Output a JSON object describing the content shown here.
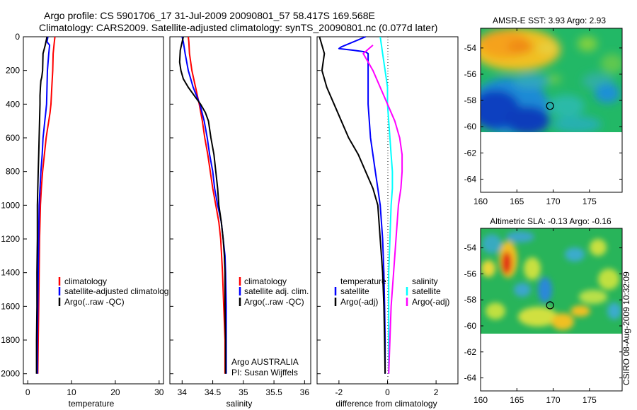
{
  "header": {
    "line1": "Argo profile: CS 5901706_17 31-Jul-2009 20090801_57 58.417S 169.568E",
    "line2": "Climatology: CARS2009. Satellite-adjusted climatology: synTS_20090801.nc (0.077d later)"
  },
  "colors": {
    "climatology": "#ff0000",
    "satellite": "#0000ff",
    "argo": "#000000",
    "sal_satellite": "#00ffff",
    "sal_argo": "#ff00ff"
  },
  "chart_data": [
    {
      "type": "line",
      "name": "temperature-panel",
      "xlabel": "temperature",
      "ylabel": "",
      "xlim": [
        -1,
        31
      ],
      "ylim": [
        2060,
        0
      ],
      "xticks": [
        0,
        10,
        20,
        30
      ],
      "yticks": [
        0,
        200,
        400,
        600,
        800,
        1000,
        1200,
        1400,
        1600,
        1800,
        2000
      ],
      "legend": [
        "climatology",
        "satellite-adjusted climatolog",
        "Argo(..raw -QC)"
      ],
      "series": [
        {
          "name": "climatology",
          "color": "#ff0000",
          "points": [
            [
              6.2,
              0
            ],
            [
              6.0,
              50
            ],
            [
              5.8,
              100
            ],
            [
              5.7,
              200
            ],
            [
              5.5,
              300
            ],
            [
              5.3,
              400
            ],
            [
              5.1,
              450
            ],
            [
              4.8,
              500
            ],
            [
              4.5,
              550
            ],
            [
              4.2,
              600
            ],
            [
              3.8,
              700
            ],
            [
              3.4,
              800
            ],
            [
              3.1,
              900
            ],
            [
              2.9,
              1000
            ],
            [
              2.7,
              1200
            ],
            [
              2.6,
              1400
            ],
            [
              2.5,
              1600
            ],
            [
              2.4,
              1800
            ],
            [
              2.3,
              2000
            ]
          ]
        },
        {
          "name": "satellite-adjusted climatolog",
          "color": "#0000ff",
          "points": [
            [
              4.6,
              0
            ],
            [
              4.4,
              30
            ],
            [
              5.0,
              50
            ],
            [
              4.8,
              100
            ],
            [
              4.5,
              200
            ],
            [
              4.4,
              300
            ],
            [
              4.3,
              400
            ],
            [
              4.1,
              450
            ],
            [
              3.9,
              500
            ],
            [
              3.7,
              550
            ],
            [
              3.5,
              600
            ],
            [
              3.3,
              700
            ],
            [
              3.0,
              800
            ],
            [
              2.8,
              900
            ],
            [
              2.6,
              1000
            ],
            [
              2.5,
              1200
            ],
            [
              2.4,
              1400
            ],
            [
              2.3,
              1600
            ],
            [
              2.2,
              1800
            ],
            [
              2.2,
              2000
            ]
          ]
        },
        {
          "name": "Argo(..raw -QC)",
          "color": "#000000",
          "points": [
            [
              4.4,
              0
            ],
            [
              4.0,
              50
            ],
            [
              3.5,
              100
            ],
            [
              3.4,
              200
            ],
            [
              3.2,
              240
            ],
            [
              3.0,
              260
            ],
            [
              2.9,
              300
            ],
            [
              2.8,
              350
            ],
            [
              2.8,
              400
            ],
            [
              2.7,
              500
            ],
            [
              2.6,
              600
            ],
            [
              2.5,
              700
            ],
            [
              2.4,
              800
            ],
            [
              2.3,
              900
            ],
            [
              2.2,
              1000
            ],
            [
              2.2,
              1200
            ],
            [
              2.1,
              1400
            ],
            [
              2.1,
              1600
            ],
            [
              2.0,
              1800
            ],
            [
              2.0,
              2000
            ]
          ]
        }
      ]
    },
    {
      "type": "line",
      "name": "salinity-panel",
      "xlabel": "salinity",
      "xlim": [
        33.8,
        36.1
      ],
      "ylim": [
        2060,
        0
      ],
      "xticks": [
        "34",
        "34.5",
        "35",
        "35.5",
        "36"
      ],
      "legend": [
        "climatology",
        "satellite adj. clim.",
        "Argo(..raw -QC)"
      ],
      "annotations": [
        "Argo AUSTRALIA",
        "PI: Susan Wijffels"
      ],
      "series": [
        {
          "name": "climatology",
          "color": "#ff0000",
          "points": [
            [
              34.1,
              0
            ],
            [
              34.11,
              30
            ],
            [
              34.12,
              100
            ],
            [
              34.16,
              200
            ],
            [
              34.22,
              300
            ],
            [
              34.28,
              400
            ],
            [
              34.33,
              500
            ],
            [
              34.37,
              600
            ],
            [
              34.42,
              700
            ],
            [
              34.46,
              800
            ],
            [
              34.5,
              900
            ],
            [
              34.55,
              1000
            ],
            [
              34.6,
              1100
            ],
            [
              34.63,
              1200
            ],
            [
              34.66,
              1400
            ],
            [
              34.68,
              1600
            ],
            [
              34.7,
              1800
            ],
            [
              34.7,
              2000
            ]
          ]
        },
        {
          "name": "satellite adj. clim.",
          "color": "#0000ff",
          "points": [
            [
              34.0,
              0
            ],
            [
              34.02,
              30
            ],
            [
              34.05,
              100
            ],
            [
              34.1,
              200
            ],
            [
              34.18,
              300
            ],
            [
              34.29,
              400
            ],
            [
              34.36,
              500
            ],
            [
              34.41,
              600
            ],
            [
              34.45,
              700
            ],
            [
              34.5,
              800
            ],
            [
              34.53,
              900
            ],
            [
              34.58,
              1000
            ],
            [
              34.64,
              1100
            ],
            [
              34.67,
              1200
            ],
            [
              34.7,
              1300
            ],
            [
              34.71,
              1400
            ],
            [
              34.72,
              1600
            ],
            [
              34.72,
              1800
            ],
            [
              34.72,
              2000
            ]
          ]
        },
        {
          "name": "Argo(..raw -QC)",
          "color": "#000000",
          "points": [
            [
              34.02,
              0
            ],
            [
              33.97,
              80
            ],
            [
              33.96,
              150
            ],
            [
              33.98,
              200
            ],
            [
              34.02,
              250
            ],
            [
              34.1,
              300
            ],
            [
              34.2,
              350
            ],
            [
              34.3,
              400
            ],
            [
              34.38,
              450
            ],
            [
              34.43,
              500
            ],
            [
              34.47,
              600
            ],
            [
              34.52,
              700
            ],
            [
              34.55,
              800
            ],
            [
              34.58,
              900
            ],
            [
              34.6,
              1000
            ],
            [
              34.64,
              1100
            ],
            [
              34.67,
              1200
            ],
            [
              34.69,
              1300
            ],
            [
              34.7,
              1400
            ],
            [
              34.7,
              1600
            ],
            [
              34.71,
              1800
            ],
            [
              34.71,
              2000
            ]
          ]
        }
      ]
    },
    {
      "type": "line",
      "name": "difference-panel",
      "xlabel": "difference from climatology",
      "xlim": [
        -2.9,
        2.9
      ],
      "ylim": [
        2060,
        0
      ],
      "xticks": [
        "-2",
        "0",
        "2"
      ],
      "legend": [
        "temperature",
        "satellite",
        "Argo(-adj)",
        "salinity",
        "satellite",
        "Argo(-adj)"
      ],
      "series": [
        {
          "name": "temperature satellite",
          "color": "#0000ff",
          "points": [
            [
              -0.9,
              0
            ],
            [
              -1.9,
              60
            ],
            [
              -2.0,
              70
            ],
            [
              -1.4,
              80
            ],
            [
              -0.9,
              90
            ],
            [
              -0.8,
              100
            ],
            [
              -0.8,
              200
            ],
            [
              -0.8,
              300
            ],
            [
              -0.8,
              400
            ],
            [
              -0.75,
              500
            ],
            [
              -0.7,
              600
            ],
            [
              -0.6,
              700
            ],
            [
              -0.5,
              800
            ],
            [
              -0.4,
              900
            ],
            [
              -0.3,
              1000
            ],
            [
              -0.2,
              1200
            ],
            [
              -0.15,
              1400
            ],
            [
              -0.12,
              1600
            ],
            [
              -0.1,
              1800
            ],
            [
              -0.1,
              2000
            ]
          ]
        },
        {
          "name": "temperature Argo(-adj)",
          "color": "#000000",
          "points": [
            [
              -2.8,
              0
            ],
            [
              -2.6,
              100
            ],
            [
              -2.7,
              200
            ],
            [
              -2.5,
              300
            ],
            [
              -2.2,
              400
            ],
            [
              -1.9,
              500
            ],
            [
              -1.6,
              600
            ],
            [
              -1.2,
              700
            ],
            [
              -0.9,
              800
            ],
            [
              -0.6,
              900
            ],
            [
              -0.4,
              1000
            ],
            [
              -0.3,
              1200
            ],
            [
              -0.2,
              1400
            ],
            [
              -0.15,
              1600
            ],
            [
              -0.12,
              1800
            ],
            [
              -0.1,
              2000
            ]
          ]
        },
        {
          "name": "salinity satellite",
          "color": "#00ffff",
          "points": [
            [
              -0.3,
              0
            ],
            [
              -0.25,
              50
            ],
            [
              -0.2,
              100
            ],
            [
              -0.1,
              200
            ],
            [
              0.0,
              300
            ],
            [
              0.0,
              400
            ],
            [
              0.05,
              500
            ],
            [
              0.1,
              600
            ],
            [
              0.15,
              700
            ],
            [
              0.2,
              800
            ],
            [
              0.2,
              900
            ],
            [
              0.15,
              1000
            ],
            [
              0.1,
              1200
            ],
            [
              0.05,
              1400
            ],
            [
              0.05,
              1600
            ],
            [
              0.05,
              1800
            ],
            [
              0.05,
              2000
            ]
          ]
        },
        {
          "name": "salinity Argo(-adj)",
          "color": "#ff00ff",
          "points": [
            [
              -0.6,
              50
            ],
            [
              -1.0,
              100
            ],
            [
              -0.8,
              150
            ],
            [
              -0.6,
              200
            ],
            [
              -0.3,
              300
            ],
            [
              0.0,
              400
            ],
            [
              0.3,
              500
            ],
            [
              0.5,
              600
            ],
            [
              0.6,
              700
            ],
            [
              0.6,
              800
            ],
            [
              0.55,
              900
            ],
            [
              0.45,
              1000
            ],
            [
              0.35,
              1200
            ],
            [
              0.25,
              1400
            ],
            [
              0.15,
              1600
            ],
            [
              0.1,
              1800
            ],
            [
              0.05,
              2000
            ]
          ]
        }
      ]
    },
    {
      "type": "heatmap",
      "name": "amsr-e-map",
      "title": "AMSR-E SST: 3.93 Argo: 2.93",
      "xlim": [
        160,
        179.5
      ],
      "ylim": [
        -65,
        -52.5
      ],
      "xticks": [
        "160",
        "165",
        "170",
        "175"
      ],
      "yticks": [
        "-54",
        "-56",
        "-58",
        "-60",
        "-62",
        "-64"
      ],
      "marker": {
        "lon": 169.568,
        "lat": -58.417
      }
    },
    {
      "type": "heatmap",
      "name": "altimetric-sla-map",
      "title": "Altimetric SLA: -0.13 Argo: -0.16",
      "xlim": [
        160,
        179.5
      ],
      "ylim": [
        -65,
        -52.5
      ],
      "xticks": [
        "160",
        "165",
        "170",
        "175"
      ],
      "yticks": [
        "-54",
        "-56",
        "-58",
        "-60",
        "-62",
        "-64"
      ],
      "marker": {
        "lon": 169.568,
        "lat": -58.417
      }
    }
  ],
  "side_label": "CSIRO 08-Aug-2009 10:32:09"
}
